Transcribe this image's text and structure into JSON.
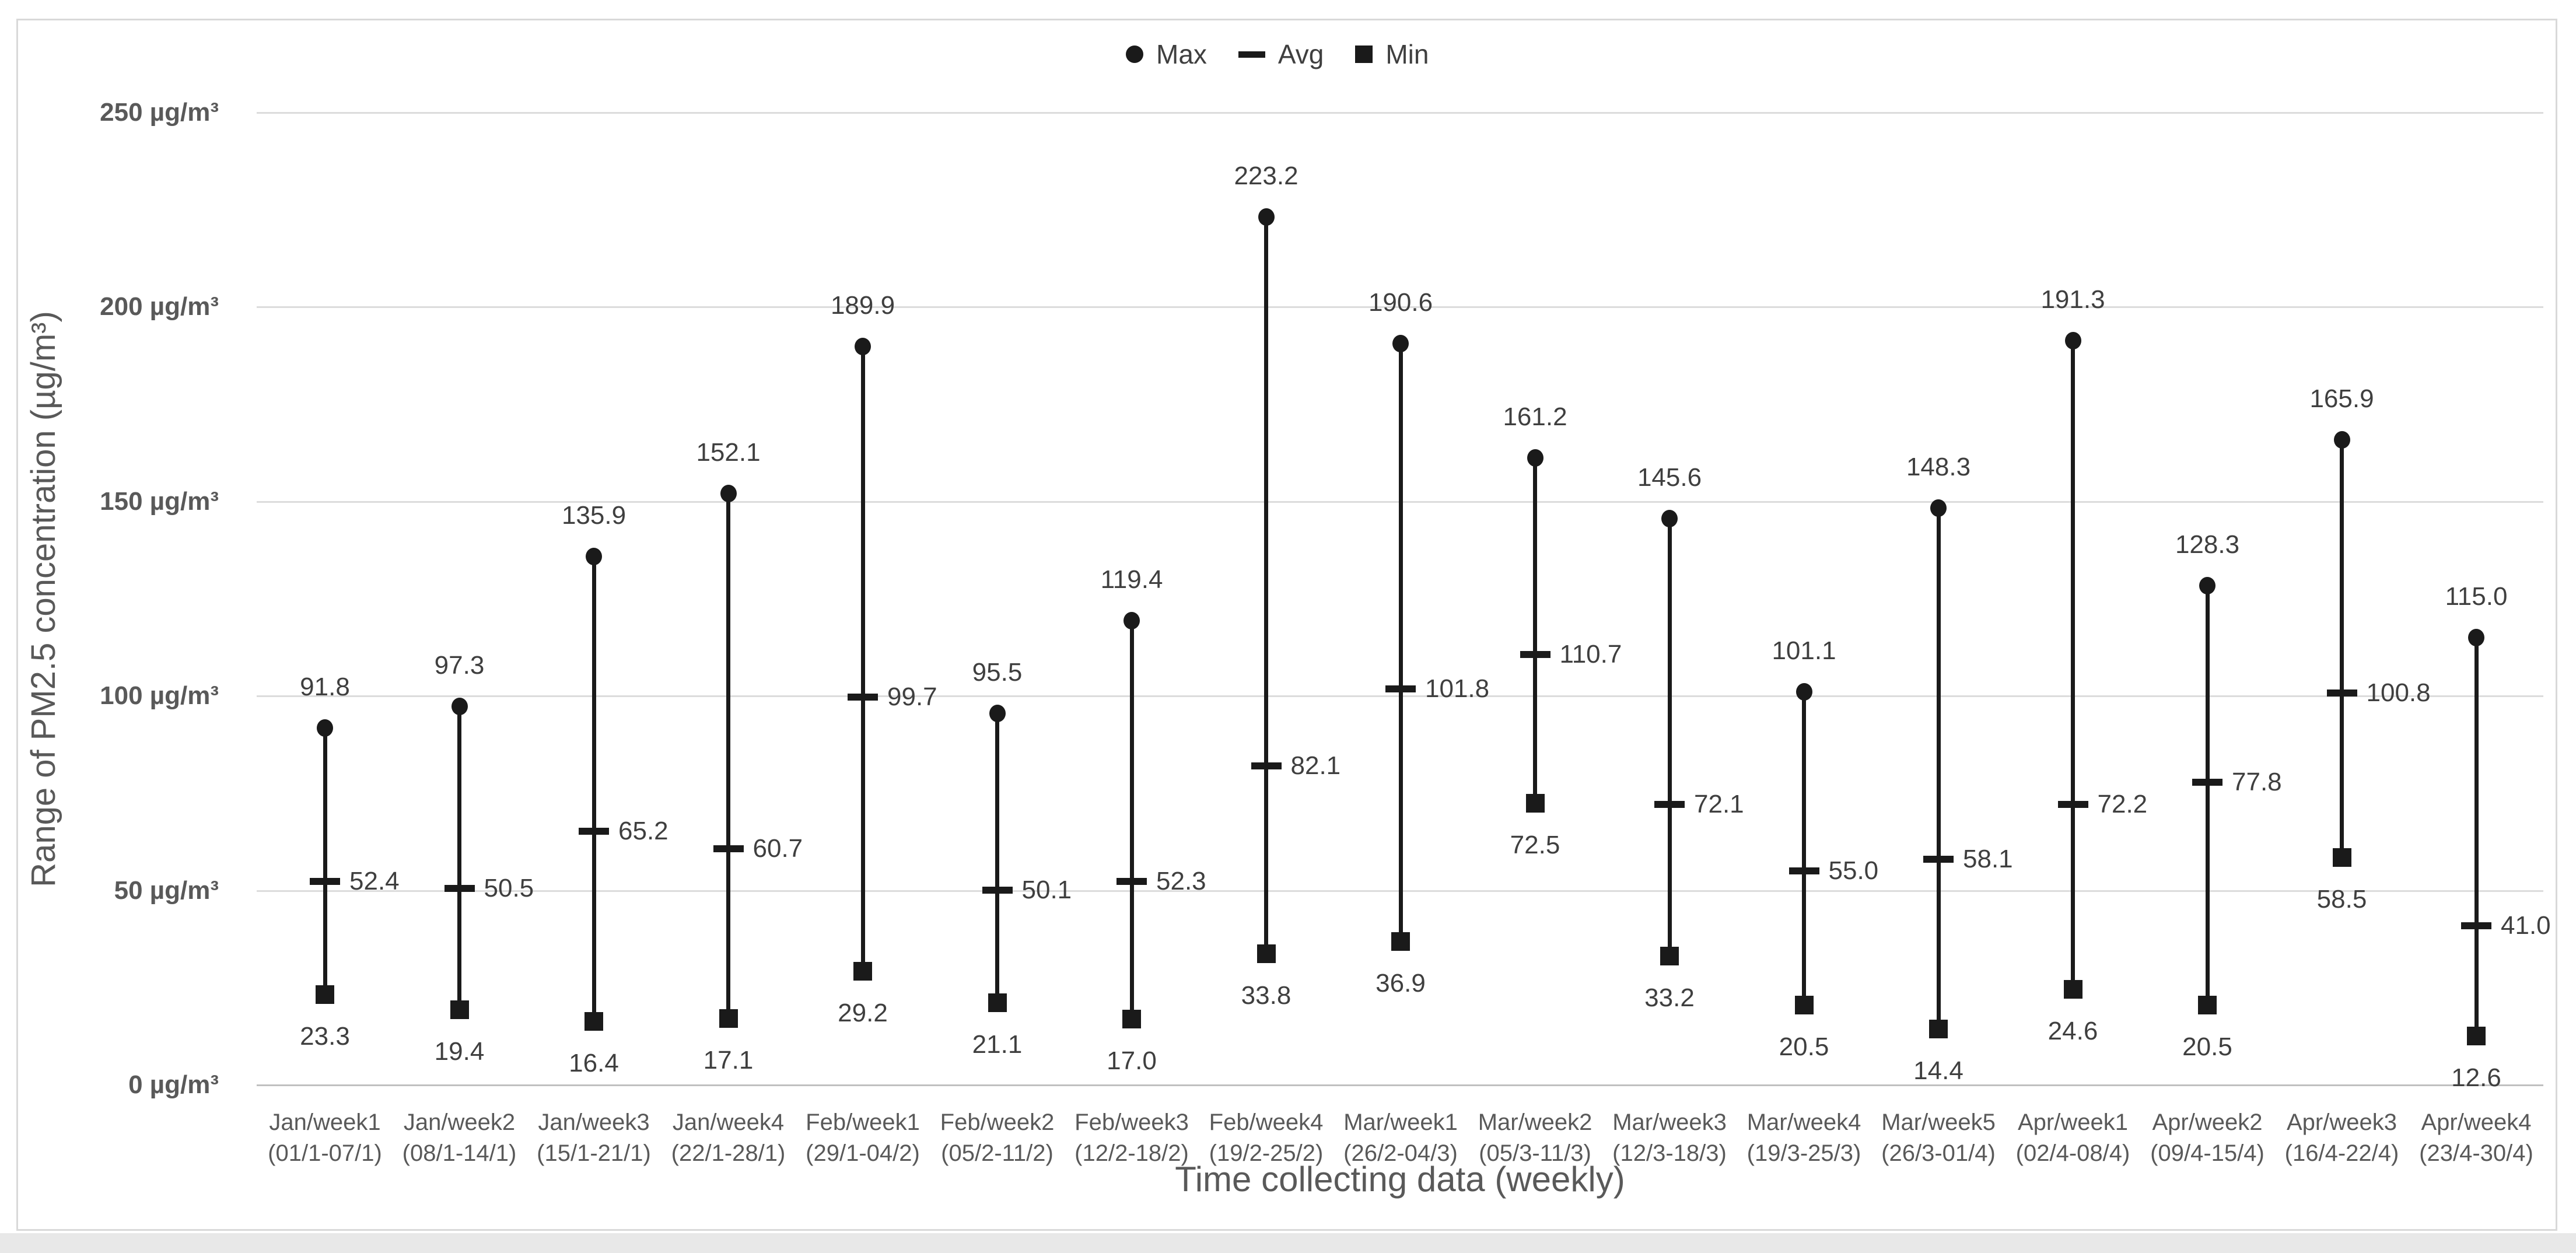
{
  "legend": {
    "items": [
      {
        "label": "Max",
        "marker": "circle"
      },
      {
        "label": "Avg",
        "marker": "dash"
      },
      {
        "label": "Min",
        "marker": "square"
      }
    ]
  },
  "y_axis": {
    "title": "Range of PM2.5 concentration (µg/m³)",
    "tick_labels": [
      "0 µg/m³",
      "50 µg/m³",
      "100 µg/m³",
      "150 µg/m³",
      "200 µg/m³",
      "250 µg/m³"
    ],
    "tick_values": [
      0,
      50,
      100,
      150,
      200,
      250
    ]
  },
  "x_axis": {
    "title": "Time collecting data (weekly)"
  },
  "chart_data": {
    "type": "range-bar",
    "description": "High-low range chart of weekly PM2.5 with Max (dot), Avg (dash) and Min (square) markers and value labels",
    "categories": [
      {
        "name": "Jan/week1",
        "range": "(01/1-07/1)"
      },
      {
        "name": "Jan/week2",
        "range": "(08/1-14/1)"
      },
      {
        "name": "Jan/week3",
        "range": "(15/1-21/1)"
      },
      {
        "name": "Jan/week4",
        "range": "(22/1-28/1)"
      },
      {
        "name": "Feb/week1",
        "range": "(29/1-04/2)"
      },
      {
        "name": "Feb/week2",
        "range": "(05/2-11/2)"
      },
      {
        "name": "Feb/week3",
        "range": "(12/2-18/2)"
      },
      {
        "name": "Feb/week4",
        "range": "(19/2-25/2)"
      },
      {
        "name": "Mar/week1",
        "range": "(26/2-04/3)"
      },
      {
        "name": "Mar/week2",
        "range": "(05/3-11/3)"
      },
      {
        "name": "Mar/week3",
        "range": "(12/3-18/3)"
      },
      {
        "name": "Mar/week4",
        "range": "(19/3-25/3)"
      },
      {
        "name": "Mar/week5",
        "range": "(26/3-01/4)"
      },
      {
        "name": "Apr/week1",
        "range": "(02/4-08/4)"
      },
      {
        "name": "Apr/week2",
        "range": "(09/4-15/4)"
      },
      {
        "name": "Apr/week3",
        "range": "(16/4-22/4)"
      },
      {
        "name": "Apr/week4",
        "range": "(23/4-30/4)"
      }
    ],
    "series": [
      {
        "name": "Max",
        "values": [
          91.8,
          97.3,
          135.9,
          152.1,
          189.9,
          95.5,
          119.4,
          223.2,
          190.6,
          161.2,
          145.6,
          101.1,
          148.3,
          191.3,
          128.3,
          165.9,
          115.0
        ]
      },
      {
        "name": "Avg",
        "values": [
          52.4,
          50.5,
          65.2,
          60.7,
          99.7,
          50.1,
          52.3,
          82.1,
          101.8,
          110.7,
          72.1,
          55.0,
          58.1,
          72.2,
          77.8,
          100.8,
          41.0
        ]
      },
      {
        "name": "Min",
        "values": [
          23.3,
          19.4,
          16.4,
          17.1,
          29.2,
          21.1,
          17.0,
          33.8,
          36.9,
          72.5,
          33.2,
          20.5,
          14.4,
          24.6,
          20.5,
          58.5,
          12.6
        ]
      }
    ],
    "ylabel": "Range of PM2.5 concentration (µg/m³)",
    "xlabel": "Time collecting data (weekly)",
    "ylim": [
      0,
      250
    ],
    "grid": "horizontal gridlines every 50 µg/m³",
    "legend_position": "top-center",
    "value_label_format": "one decimal place"
  },
  "colors": {
    "marker": "#1a1a1a",
    "value_label": "#3f3f3f",
    "axis_text": "#595959",
    "gridline": "#dcdcdc",
    "zero_axis_line": "#c0c0c0",
    "frame_border": "#d9d9d9",
    "bottom_strip": "#e8e8e8",
    "background": "#ffffff"
  }
}
